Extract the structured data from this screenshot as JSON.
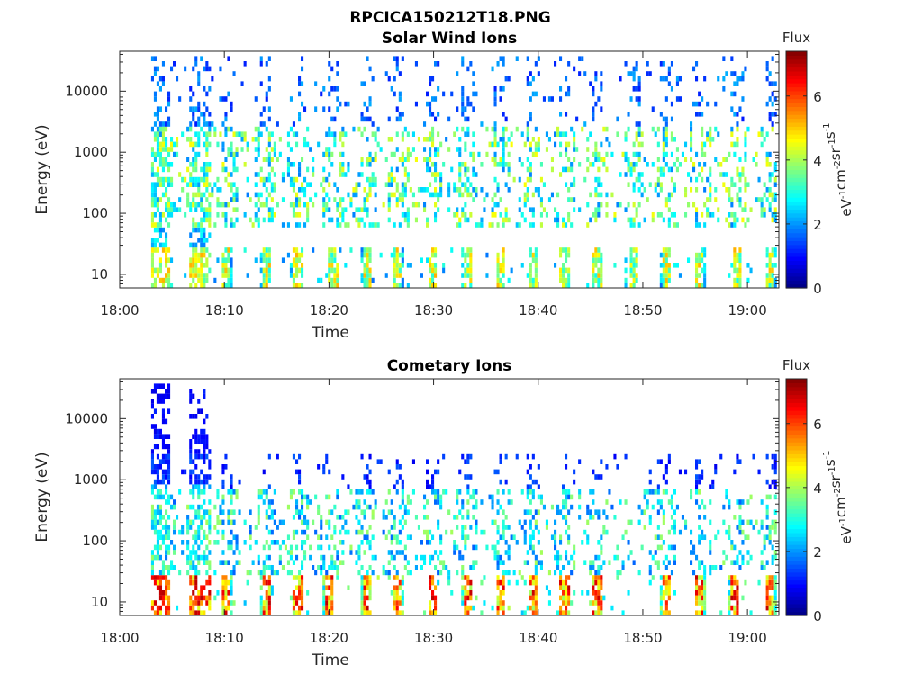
{
  "figure": {
    "title": "RPCICA150212T18.PNG"
  },
  "chart_data": [
    {
      "type": "heatmap",
      "title": "Solar Wind Ions",
      "xlabel": "Time",
      "ylabel": "Energy (eV)",
      "x_ticks": [
        "18:00",
        "18:10",
        "18:20",
        "18:30",
        "18:40",
        "18:50",
        "19:00"
      ],
      "y_ticks": [
        "10",
        "100",
        "1000",
        "10000"
      ],
      "xlim": [
        "18:00",
        "19:03"
      ],
      "ylim": [
        6,
        45000
      ],
      "y_scale": "log",
      "colorbar": {
        "label": "Flux",
        "unit": "eV-1cm-2sr-1s-1",
        "ticks": [
          0,
          2,
          4,
          6
        ],
        "range": [
          0,
          7.4
        ],
        "colormap": "jet"
      },
      "grid": false,
      "seed": 11,
      "activity": {
        "high_flux_times_min": [
          4.2,
          7.3,
          10.1,
          13.8,
          16.9,
          20.3,
          23.5,
          26.5,
          29.8,
          33.1,
          36.3,
          39.4,
          42.4,
          45.5,
          49.0,
          52.1,
          55.3,
          58.9,
          62.1
        ],
        "low_energy_band_eV": [
          6,
          30
        ],
        "mid_energy_band_eV": [
          60,
          3000
        ],
        "high_energy_band_eV": [
          3000,
          45000
        ],
        "max_flux_low_band": 5.2,
        "max_flux_mid_band": 4.6,
        "max_flux_high_band": 2.2
      }
    },
    {
      "type": "heatmap",
      "title": "Cometary Ions",
      "xlabel": "Time",
      "ylabel": "Energy (eV)",
      "x_ticks": [
        "18:00",
        "18:10",
        "18:20",
        "18:30",
        "18:40",
        "18:50",
        "19:00"
      ],
      "y_ticks": [
        "10",
        "100",
        "1000",
        "10000"
      ],
      "xlim": [
        "18:00",
        "19:03"
      ],
      "ylim": [
        6,
        45000
      ],
      "y_scale": "log",
      "colorbar": {
        "label": "Flux",
        "unit": "eV-1cm-2sr-1s-1",
        "ticks": [
          0,
          2,
          4,
          6
        ],
        "range": [
          0,
          7.4
        ],
        "colormap": "jet"
      },
      "grid": false,
      "seed": 29,
      "activity": {
        "high_flux_times_min": [
          4.2,
          7.3,
          10.1,
          13.8,
          16.9,
          19.8,
          23.5,
          26.5,
          29.8,
          33.1,
          36.3,
          39.4,
          42.4,
          45.5,
          52.1,
          55.3,
          58.6,
          62.1
        ],
        "low_energy_band_eV": [
          6,
          30
        ],
        "mid_energy_band_eV": [
          30,
          700
        ],
        "high_energy_band_eV": [
          700,
          3000
        ],
        "max_flux_low_band": 7.0,
        "max_flux_mid_band": 4.0,
        "max_flux_high_band": 1.6
      }
    }
  ]
}
